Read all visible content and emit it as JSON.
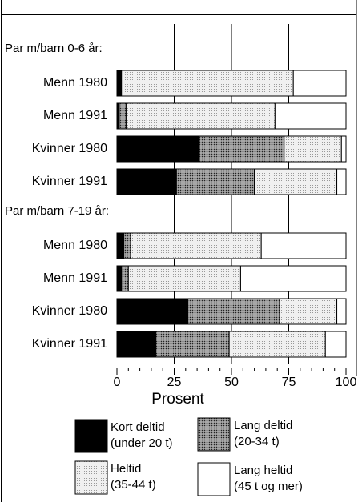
{
  "chart_data": {
    "type": "stacked-barh",
    "groups": [
      {
        "label": "Par m/barn 0-6 år:",
        "categories": [
          "Menn 1980",
          "Menn 1991",
          "Kvinner 1980",
          "Kvinner 1991"
        ]
      },
      {
        "label": "Par m/barn 7-19 år:",
        "categories": [
          "Menn 1980",
          "Menn 1991",
          "Kvinner 1980",
          "Kvinner 1991"
        ]
      }
    ],
    "series": [
      {
        "name": "Kort deltid (under 20 t)",
        "color": "#000000",
        "values": [
          2,
          1,
          36,
          26,
          3,
          2,
          31,
          17
        ]
      },
      {
        "name": "Lang deltid (20-34 t)",
        "color": "#7a7a7a",
        "values": [
          0,
          3,
          37,
          34,
          3,
          3,
          40,
          32
        ]
      },
      {
        "name": "Heltid (35-44 t)",
        "color": "#e2e2e2",
        "values": [
          75,
          65,
          25,
          36,
          57,
          49,
          25,
          42
        ]
      },
      {
        "name": "Lang heltid (45 t og mer)",
        "color": "#ffffff",
        "values": [
          23,
          31,
          2,
          4,
          37,
          46,
          4,
          9
        ]
      }
    ],
    "xlabel": "Prosent",
    "xlim": [
      0,
      100
    ],
    "xticks": [
      0,
      25,
      50,
      75,
      100
    ],
    "grid": true
  }
}
